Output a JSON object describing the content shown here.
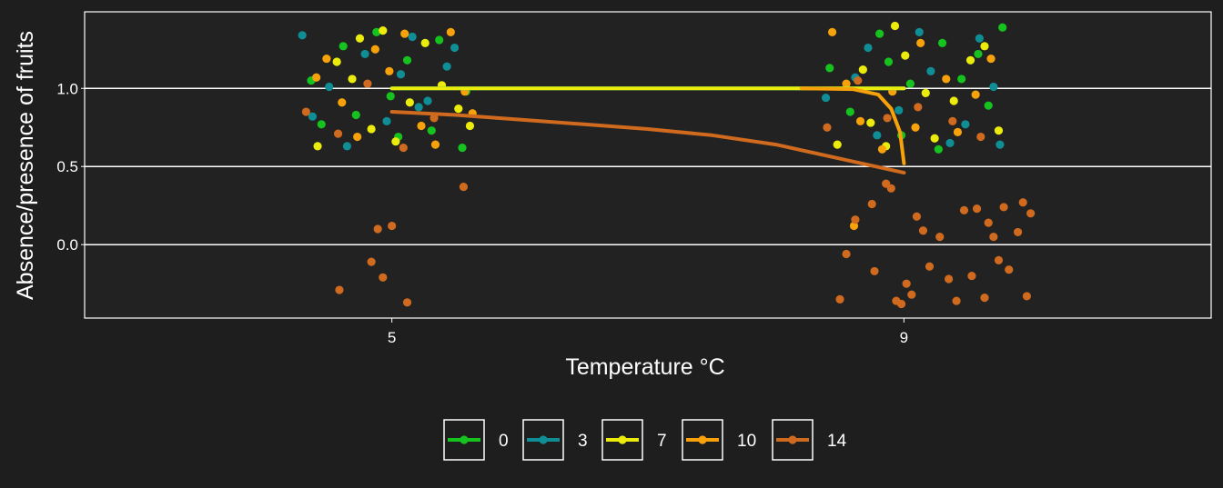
{
  "chart_data": {
    "type": "scatter",
    "title": "",
    "xlabel": "Temperature °C",
    "ylabel": "Absence/presence of fruits",
    "x_ticks": [
      "5",
      "9"
    ],
    "y_ticks": [
      "0.0",
      "0.5",
      "1.0"
    ],
    "xlim": [
      2.6,
      11.4
    ],
    "ylim": [
      -0.47,
      1.49
    ],
    "grid": "horizontal major lines",
    "legend_position": "bottom",
    "series": [
      {
        "name": "0",
        "color": "#16c21e",
        "points": [
          [
            4.37,
            1.05
          ],
          [
            4.62,
            1.27
          ],
          [
            4.88,
            1.36
          ],
          [
            5.12,
            1.18
          ],
          [
            5.37,
            1.31
          ],
          [
            5.58,
            0.98
          ],
          [
            4.45,
            0.77
          ],
          [
            4.72,
            0.83
          ],
          [
            5.05,
            0.69
          ],
          [
            5.31,
            0.73
          ],
          [
            5.55,
            0.62
          ],
          [
            4.99,
            0.95
          ],
          [
            8.42,
            1.13
          ],
          [
            8.81,
            1.35
          ],
          [
            9.05,
            1.03
          ],
          [
            9.3,
            1.29
          ],
          [
            9.58,
            1.22
          ],
          [
            9.77,
            1.39
          ],
          [
            8.58,
            0.85
          ],
          [
            8.98,
            0.7
          ],
          [
            9.27,
            0.61
          ],
          [
            9.66,
            0.89
          ],
          [
            8.88,
            1.17
          ],
          [
            9.45,
            1.06
          ]
        ],
        "fit": [
          [
            5.0,
            1.0
          ],
          [
            9.0,
            1.0
          ]
        ]
      },
      {
        "name": "3",
        "color": "#0f8e96",
        "points": [
          [
            4.3,
            1.34
          ],
          [
            4.51,
            1.01
          ],
          [
            4.79,
            1.22
          ],
          [
            5.07,
            1.09
          ],
          [
            5.28,
            0.92
          ],
          [
            5.49,
            1.26
          ],
          [
            4.65,
            0.63
          ],
          [
            4.96,
            0.79
          ],
          [
            5.21,
            0.88
          ],
          [
            5.43,
            1.14
          ],
          [
            4.38,
            0.82
          ],
          [
            5.16,
            1.33
          ],
          [
            8.39,
            0.94
          ],
          [
            8.72,
            1.26
          ],
          [
            8.96,
            0.86
          ],
          [
            9.21,
            1.11
          ],
          [
            9.48,
            0.77
          ],
          [
            9.7,
            1.01
          ],
          [
            8.62,
            1.07
          ],
          [
            9.36,
            0.65
          ],
          [
            9.59,
            1.32
          ],
          [
            8.79,
            0.7
          ],
          [
            9.12,
            1.36
          ],
          [
            9.75,
            0.64
          ]
        ],
        "fit": [
          [
            5.0,
            1.0
          ],
          [
            9.0,
            1.0
          ]
        ]
      },
      {
        "name": "7",
        "color": "#ecec0c",
        "points": [
          [
            4.42,
            0.63
          ],
          [
            4.69,
            1.06
          ],
          [
            4.93,
            1.37
          ],
          [
            5.14,
            0.91
          ],
          [
            5.39,
            1.02
          ],
          [
            5.61,
            0.76
          ],
          [
            4.57,
            1.17
          ],
          [
            4.84,
            0.74
          ],
          [
            5.26,
            1.29
          ],
          [
            5.52,
            0.87
          ],
          [
            4.75,
            1.32
          ],
          [
            5.03,
            0.66
          ],
          [
            8.48,
            0.64
          ],
          [
            8.74,
            0.78
          ],
          [
            9.01,
            1.21
          ],
          [
            9.24,
            0.68
          ],
          [
            9.52,
            1.18
          ],
          [
            9.74,
            0.73
          ],
          [
            8.68,
            1.12
          ],
          [
            8.93,
            1.4
          ],
          [
            9.39,
            0.92
          ],
          [
            9.63,
            1.27
          ],
          [
            9.17,
            0.97
          ],
          [
            8.86,
            0.63
          ]
        ],
        "fit": [
          [
            5.0,
            1.0
          ],
          [
            9.0,
            1.0
          ]
        ]
      },
      {
        "name": "10",
        "color": "#f7a20a",
        "points": [
          [
            4.49,
            1.19
          ],
          [
            4.73,
            0.69
          ],
          [
            4.98,
            1.11
          ],
          [
            5.23,
            0.76
          ],
          [
            5.46,
            1.36
          ],
          [
            5.63,
            0.84
          ],
          [
            4.61,
            0.91
          ],
          [
            4.87,
            1.25
          ],
          [
            5.1,
            1.35
          ],
          [
            5.34,
            0.64
          ],
          [
            4.41,
            1.07
          ],
          [
            5.57,
            0.98
          ],
          [
            8.44,
            1.36
          ],
          [
            8.66,
            0.79
          ],
          [
            8.91,
            0.98
          ],
          [
            9.13,
            1.29
          ],
          [
            9.42,
            0.72
          ],
          [
            9.68,
            1.19
          ],
          [
            8.55,
            1.03
          ],
          [
            8.83,
            0.61
          ],
          [
            9.09,
            0.75
          ],
          [
            9.56,
            0.96
          ],
          [
            9.33,
            1.06
          ],
          [
            8.61,
            0.12
          ]
        ],
        "fit": [
          [
            8.2,
            1.0
          ],
          [
            8.6,
            0.995
          ],
          [
            8.8,
            0.96
          ],
          [
            8.9,
            0.87
          ],
          [
            8.97,
            0.72
          ],
          [
            9.0,
            0.52
          ]
        ]
      },
      {
        "name": "14",
        "color": "#cf6a1e",
        "points": [
          [
            4.33,
            0.85
          ],
          [
            4.58,
            0.71
          ],
          [
            4.81,
            1.03
          ],
          [
            5.09,
            0.62
          ],
          [
            5.33,
            0.81
          ],
          [
            4.59,
            -0.29
          ],
          [
            4.84,
            -0.11
          ],
          [
            4.93,
            -0.21
          ],
          [
            5.12,
            -0.37
          ],
          [
            4.89,
            0.1
          ],
          [
            5.0,
            0.12
          ],
          [
            5.56,
            0.37
          ],
          [
            8.4,
            0.75
          ],
          [
            8.64,
            1.05
          ],
          [
            8.87,
            0.81
          ],
          [
            9.11,
            0.88
          ],
          [
            9.38,
            0.79
          ],
          [
            9.6,
            0.69
          ],
          [
            8.5,
            -0.35
          ],
          [
            8.55,
            -0.06
          ],
          [
            8.62,
            0.16
          ],
          [
            8.75,
            0.26
          ],
          [
            8.77,
            -0.17
          ],
          [
            8.86,
            0.39
          ],
          [
            8.9,
            0.36
          ],
          [
            8.94,
            -0.36
          ],
          [
            8.98,
            -0.38
          ],
          [
            9.02,
            -0.25
          ],
          [
            9.06,
            -0.32
          ],
          [
            9.1,
            0.18
          ],
          [
            9.15,
            0.09
          ],
          [
            9.2,
            -0.14
          ],
          [
            9.28,
            0.05
          ],
          [
            9.35,
            -0.22
          ],
          [
            9.41,
            -0.36
          ],
          [
            9.47,
            0.22
          ],
          [
            9.53,
            -0.2
          ],
          [
            9.57,
            0.23
          ],
          [
            9.63,
            -0.34
          ],
          [
            9.66,
            0.14
          ],
          [
            9.7,
            0.05
          ],
          [
            9.74,
            -0.1
          ],
          [
            9.78,
            0.24
          ],
          [
            9.82,
            -0.16
          ],
          [
            9.89,
            0.08
          ],
          [
            9.93,
            0.27
          ],
          [
            9.96,
            -0.33
          ],
          [
            9.99,
            0.2
          ]
        ],
        "fit": [
          [
            5.0,
            0.85
          ],
          [
            5.5,
            0.83
          ],
          [
            6.0,
            0.8
          ],
          [
            6.5,
            0.77
          ],
          [
            7.0,
            0.74
          ],
          [
            7.5,
            0.7
          ],
          [
            8.0,
            0.64
          ],
          [
            8.5,
            0.55
          ],
          [
            9.0,
            0.46
          ]
        ]
      }
    ]
  }
}
